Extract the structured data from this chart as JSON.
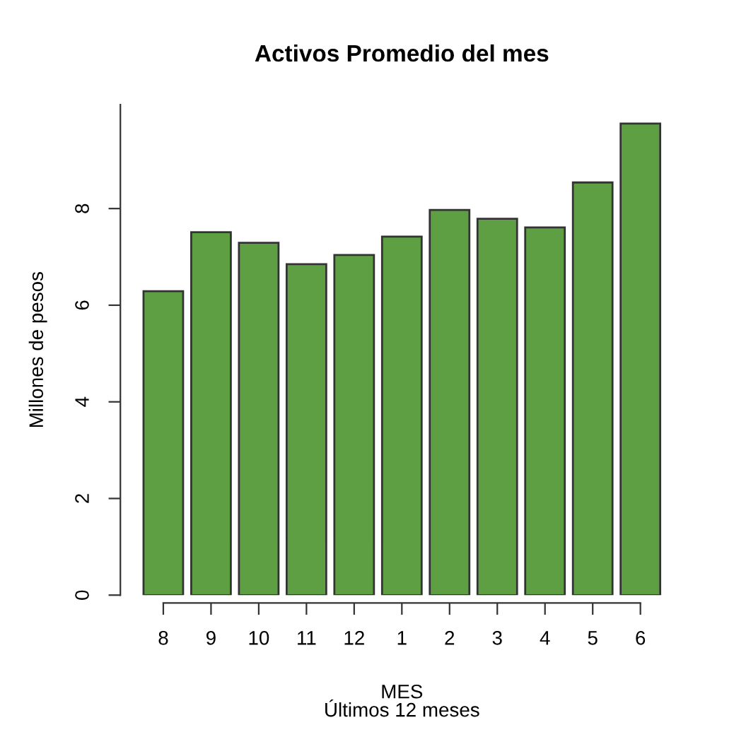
{
  "chart_data": {
    "type": "bar",
    "title": "Activos Promedio del mes",
    "xlabel": "MES\nÚltimos 12 meses",
    "ylabel": "Millones de pesos",
    "categories": [
      "8",
      "9",
      "10",
      "11",
      "12",
      "1",
      "2",
      "3",
      "4",
      "5",
      "6"
    ],
    "values": [
      6.29,
      7.51,
      7.29,
      6.85,
      7.04,
      7.42,
      7.97,
      7.79,
      7.61,
      8.54,
      9.76
    ],
    "color": "#5f9f44",
    "ylim": [
      0,
      10.15
    ],
    "yticks": [
      0,
      2,
      4,
      6,
      8
    ],
    "grid": false,
    "legend": false
  }
}
